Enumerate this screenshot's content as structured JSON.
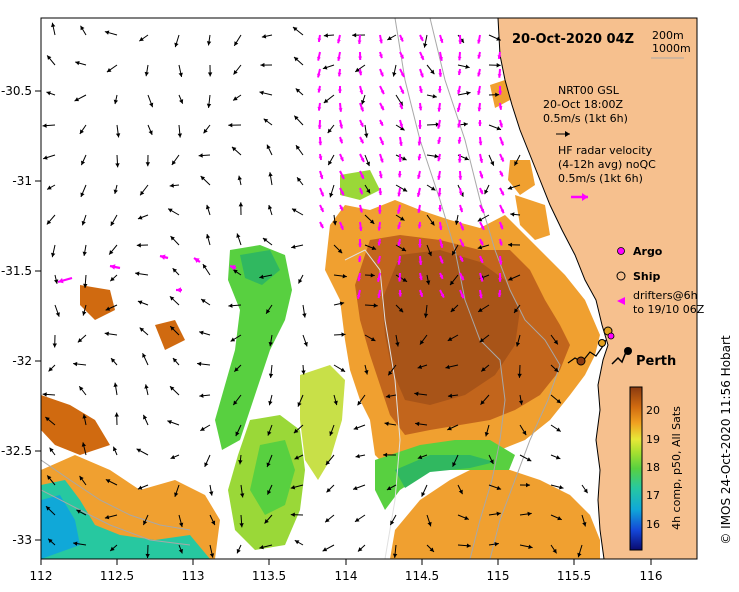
{
  "title": "20-Oct-2020 04Z",
  "depth_legend": [
    "200m",
    "1000m"
  ],
  "axes": {
    "x_ticks": [
      "112",
      "112.5",
      "113",
      "113.5",
      "114",
      "114.5",
      "115",
      "115.5",
      "116"
    ],
    "y_ticks": [
      "-30.5",
      "-31",
      "-31.5",
      "-32",
      "-32.5",
      "-33"
    ],
    "x_range": [
      112,
      116.3
    ],
    "y_range": [
      -33.05,
      -30.1
    ]
  },
  "gsl_legend": {
    "lines": [
      "NRT00 GSL",
      "20-Oct 18:00Z",
      "0.5m/s (1kt 6h)"
    ]
  },
  "hf_legend": {
    "lines": [
      "HF radar velocity",
      "(4-12h avg) noQC",
      "0.5m/s (1kt 6h)"
    ]
  },
  "symbols": {
    "argo": "Argo",
    "ship": "Ship",
    "drifters": [
      "drifters@6h",
      "to 19/10 06Z"
    ]
  },
  "city": {
    "name": "Perth",
    "lon": 115.86,
    "lat": -31.95
  },
  "colorbar": {
    "ticks": [
      "20",
      "19",
      "18",
      "17",
      "16"
    ],
    "label": "4h comp, p50, All Sats",
    "min": 15.5,
    "max": 20.5
  },
  "credit": "© IMOS 24-Oct-2020 11:56 Hobart",
  "colors": {
    "land": "#f6c08e",
    "hf_arrow": "#ff00ff",
    "gsl_arrow": "#000000",
    "contour": "#a8a8a8"
  }
}
